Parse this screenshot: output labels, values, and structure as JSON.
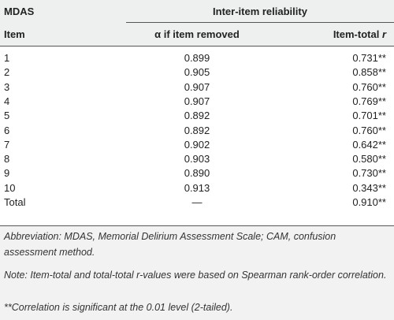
{
  "table": {
    "header": {
      "group_left": "MDAS",
      "group_right": "Inter-item reliability",
      "columns": [
        {
          "text": "Item"
        },
        {
          "text": "α if item removed"
        },
        {
          "text": "Item-total",
          "var": "r"
        }
      ]
    },
    "rows": [
      [
        "1",
        "0.899",
        "0.731**"
      ],
      [
        "2",
        "0.905",
        "0.858**"
      ],
      [
        "3",
        "0.907",
        "0.760**"
      ],
      [
        "4",
        "0.907",
        "0.769**"
      ],
      [
        "5",
        "0.892",
        "0.701**"
      ],
      [
        "6",
        "0.892",
        "0.760**"
      ],
      [
        "7",
        "0.902",
        "0.642**"
      ],
      [
        "8",
        "0.903",
        "0.580**"
      ],
      [
        "9",
        "0.890",
        "0.730**"
      ],
      [
        "10",
        "0.913",
        "0.343**"
      ],
      [
        "Total",
        "—",
        "0.910**"
      ]
    ]
  },
  "notes": [
    "Abbreviation: MDAS, Memorial Delirium Assessment Scale; CAM, confusion assessment method.",
    "Note: Item-total and total-total r-values were based on Spearman rank-order correlation.",
    "**Correlation is significant at the 0.01 level (2-tailed)."
  ]
}
